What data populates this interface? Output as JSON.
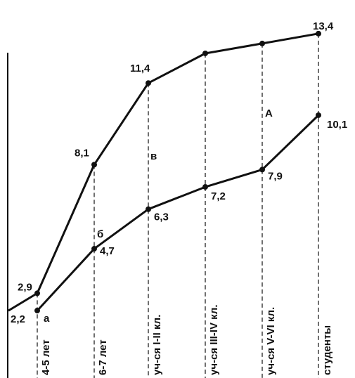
{
  "chart_data": {
    "type": "line",
    "categories": [
      "4-5 лет",
      "6-7 лет",
      "уч-ся I-II кл.",
      "уч-ся III-IV кл.",
      "уч-ся V-VI кл.",
      "студенты"
    ],
    "series": [
      {
        "values": [
          2.9,
          8.1,
          11.4,
          12.6,
          13.0,
          13.4
        ],
        "labels": [
          "2,9",
          "8,1",
          "11,4",
          "",
          "",
          "13,4"
        ]
      },
      {
        "values": [
          2.2,
          4.7,
          6.3,
          7.2,
          7.9,
          10.1
        ],
        "labels": [
          "2,2",
          "4,7",
          "6,3",
          "7,2",
          "7,9",
          "10,1"
        ]
      }
    ],
    "annotations": [
      "а",
      "б",
      "в",
      "А"
    ],
    "grid": "dashed vertical guides",
    "legend": "none"
  },
  "colors": {
    "line": "#111111",
    "guide": "#333333"
  }
}
